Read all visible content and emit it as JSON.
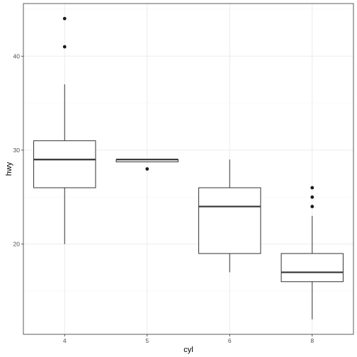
{
  "chart_data": {
    "type": "box",
    "xlabel": "cyl",
    "ylabel": "hwy",
    "categories": [
      "4",
      "5",
      "6",
      "8"
    ],
    "ylim": [
      10.4,
      45.6
    ],
    "y_major_ticks": [
      20,
      30,
      40
    ],
    "y_minor_ticks": [
      15,
      25,
      35,
      45
    ],
    "grid": true,
    "colors": {
      "box_fill": "#ffffff",
      "box_stroke": "#333333",
      "outlier": "#1a1a1a",
      "grid_major": "#ebebeb",
      "grid_minor": "#f5f5f5",
      "panel_border": "#333333"
    },
    "boxes": [
      {
        "category": "4",
        "lower_whisker": 20,
        "q1": 26,
        "median": 29,
        "q3": 31,
        "upper_whisker": 37,
        "outliers": [
          41,
          44
        ]
      },
      {
        "category": "5",
        "lower_whisker": 28.75,
        "q1": 28.75,
        "median": 29,
        "q3": 29,
        "upper_whisker": 29,
        "outliers": [
          28
        ]
      },
      {
        "category": "6",
        "lower_whisker": 17,
        "q1": 19,
        "median": 24,
        "q3": 26,
        "upper_whisker": 29,
        "outliers": []
      },
      {
        "category": "8",
        "lower_whisker": 12,
        "q1": 16,
        "median": 17,
        "q3": 19,
        "upper_whisker": 23,
        "outliers": [
          24,
          25,
          26
        ]
      }
    ]
  }
}
